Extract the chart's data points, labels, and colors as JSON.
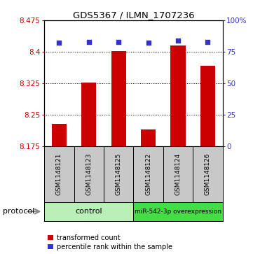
{
  "title": "GDS5367 / ILMN_1707236",
  "samples": [
    "GSM1148121",
    "GSM1148123",
    "GSM1148125",
    "GSM1148122",
    "GSM1148124",
    "GSM1148126"
  ],
  "transformed_counts": [
    8.228,
    8.326,
    8.401,
    8.215,
    8.415,
    8.366
  ],
  "percentile_ranks": [
    82,
    83,
    83,
    82,
    84,
    83
  ],
  "ylim_left": [
    8.175,
    8.475
  ],
  "ylim_right": [
    0,
    100
  ],
  "yticks_left": [
    8.175,
    8.25,
    8.325,
    8.4,
    8.475
  ],
  "yticks_right": [
    0,
    25,
    50,
    75,
    100
  ],
  "ytick_labels_left": [
    "8.175",
    "8.25",
    "8.325",
    "8.4",
    "8.475"
  ],
  "ytick_labels_right": [
    "0",
    "25",
    "50",
    "75",
    "100%"
  ],
  "hlines": [
    8.25,
    8.325,
    8.4
  ],
  "bar_color": "#cc0000",
  "dot_color": "#3333cc",
  "bar_bottom": 8.175,
  "group1_label": "control",
  "group1_color": "#b8f0b8",
  "group2_label": "miR-542-3p overexpression",
  "group2_color": "#44dd44",
  "protocol_label": "protocol",
  "legend_red_label": "transformed count",
  "legend_blue_label": "percentile rank within the sample",
  "tick_color_left": "#cc0000",
  "tick_color_right": "#3333cc",
  "bg_sample_area": "#c8c8c8",
  "figsize": [
    3.61,
    3.63
  ],
  "dpi": 100
}
